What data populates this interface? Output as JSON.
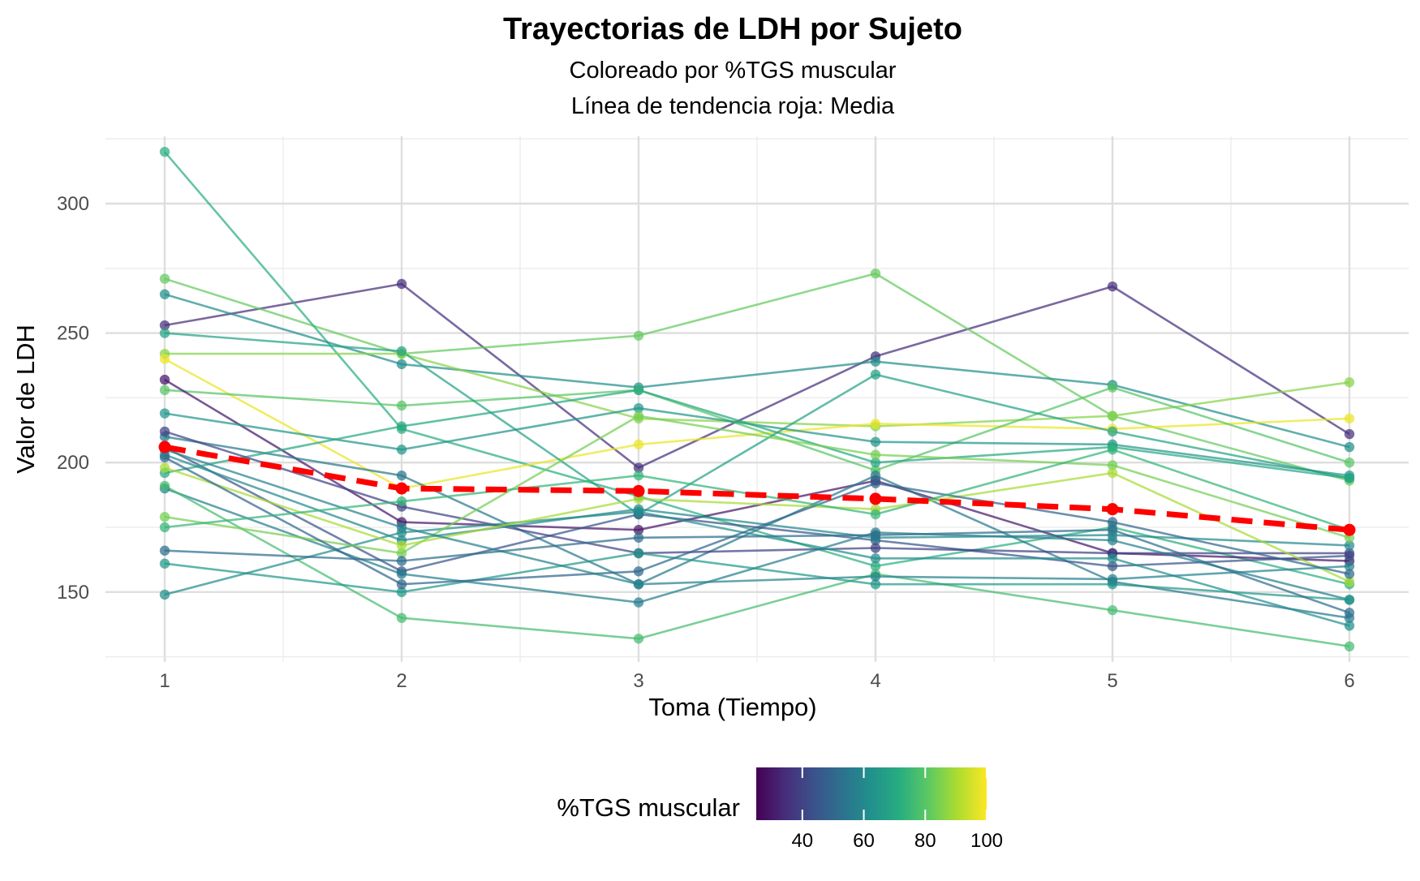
{
  "chart_data": {
    "type": "line",
    "title": "Trayectorias de LDH por Sujeto",
    "subtitle_line1": "Coloreado por %TGS muscular",
    "subtitle_line2": "Línea de tendencia roja: Media",
    "xlabel": "Toma (Tiempo)",
    "ylabel": "Valor de LDH",
    "x": [
      1,
      2,
      3,
      4,
      5,
      6
    ],
    "xlim": [
      0.75,
      6.25
    ],
    "ylim": [
      123,
      326
    ],
    "y_ticks": [
      150,
      200,
      250,
      300
    ],
    "grid": true,
    "legend": {
      "title": "%TGS muscular",
      "placement": "bottom",
      "range": [
        25,
        100
      ],
      "ticks": [
        40,
        60,
        80,
        100
      ],
      "palette": "viridis"
    },
    "mean_trend": {
      "color": "#ff0000",
      "style": "dashed",
      "values": [
        206,
        190,
        189,
        186,
        182,
        174
      ]
    },
    "series": [
      {
        "tgs": 35,
        "values": [
          253,
          269,
          198,
          241,
          268,
          211
        ]
      },
      {
        "tgs": 82,
        "values": [
          271,
          242,
          249,
          273,
          218,
          193
        ]
      },
      {
        "tgs": 72,
        "values": [
          320,
          213,
          187,
          160,
          175,
          153
        ]
      },
      {
        "tgs": 62,
        "values": [
          265,
          238,
          229,
          239,
          230,
          206
        ]
      },
      {
        "tgs": 86,
        "values": [
          242,
          242,
          217,
          214,
          218,
          231
        ]
      },
      {
        "tgs": 98,
        "values": [
          240,
          190,
          207,
          215,
          213,
          217
        ]
      },
      {
        "tgs": 80,
        "values": [
          228,
          222,
          228,
          197,
          229,
          200
        ]
      },
      {
        "tgs": 68,
        "values": [
          250,
          243,
          180,
          234,
          212,
          194
        ]
      },
      {
        "tgs": 30,
        "values": [
          232,
          177,
          174,
          193,
          165,
          162
        ]
      },
      {
        "tgs": 55,
        "values": [
          210,
          195,
          153,
          195,
          154,
          140
        ]
      },
      {
        "tgs": 45,
        "values": [
          206,
          158,
          180,
          170,
          160,
          164
        ]
      },
      {
        "tgs": 64,
        "values": [
          219,
          205,
          221,
          208,
          207,
          195
        ]
      },
      {
        "tgs": 70,
        "values": [
          196,
          214,
          228,
          200,
          206,
          194
        ]
      },
      {
        "tgs": 40,
        "values": [
          212,
          183,
          165,
          167,
          165,
          165
        ]
      },
      {
        "tgs": 57,
        "values": [
          190,
          157,
          146,
          173,
          170,
          147
        ]
      },
      {
        "tgs": 60,
        "values": [
          203,
          170,
          182,
          171,
          172,
          168
        ]
      },
      {
        "tgs": 77,
        "values": [
          191,
          140,
          132,
          157,
          143,
          129
        ]
      },
      {
        "tgs": 65,
        "values": [
          161,
          150,
          165,
          153,
          153,
          147
        ]
      },
      {
        "tgs": 62,
        "values": [
          149,
          173,
          181,
          163,
          163,
          137
        ]
      },
      {
        "tgs": 84,
        "values": [
          179,
          165,
          218,
          203,
          199,
          171
        ]
      },
      {
        "tgs": 90,
        "values": [
          198,
          168,
          186,
          182,
          196,
          154
        ]
      },
      {
        "tgs": 50,
        "values": [
          202,
          153,
          158,
          192,
          177,
          157
        ]
      },
      {
        "tgs": 58,
        "values": [
          205,
          175,
          153,
          156,
          155,
          160
        ]
      },
      {
        "tgs": 74,
        "values": [
          175,
          185,
          195,
          180,
          205,
          174
        ]
      },
      {
        "tgs": 52,
        "values": [
          166,
          162,
          171,
          172,
          174,
          142
        ]
      }
    ]
  }
}
